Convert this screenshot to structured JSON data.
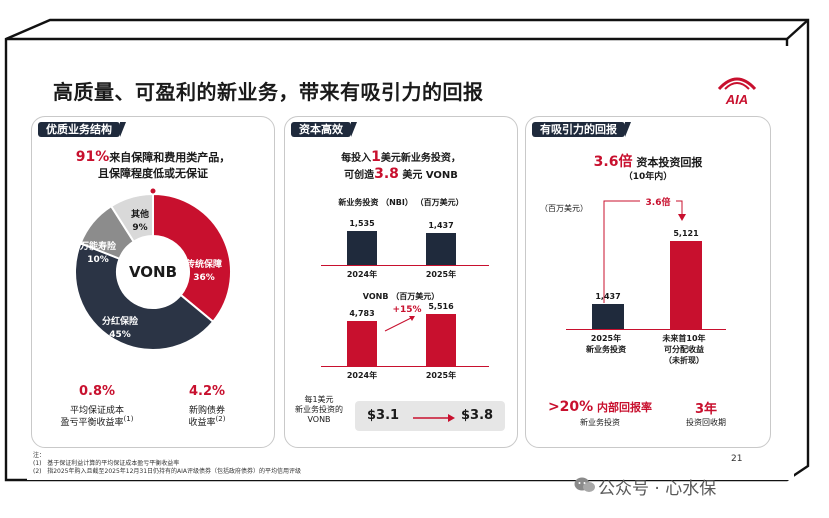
{
  "title": "高质量、可盈利的新业务，带来有吸引力的回报",
  "brand": {
    "name": "AIA",
    "color": "#c8102e",
    "navy": "#1f2a3c"
  },
  "panel1": {
    "header": "优质业务结构",
    "headline_pct": "91%",
    "headline_rest": "来自保障和费用类产品，",
    "headline_line2": "且保障程度低或无保证",
    "donut_center": "VONB",
    "slices": [
      {
        "label": "传统保障",
        "pct": "36%",
        "value": 36,
        "color": "#c8102e"
      },
      {
        "label": "分红保险",
        "pct": "45%",
        "value": 45,
        "color": "#2b3445"
      },
      {
        "label": "万能寿险",
        "pct": "10%",
        "value": 10,
        "color": "#8c8c8c"
      },
      {
        "label": "其他",
        "pct": "9%",
        "value": 9,
        "color": "#d9d9d9"
      }
    ],
    "stat1": {
      "value": "0.8%",
      "line1": "平均保证成本",
      "line2": "盈亏平衡收益率",
      "sup": "(1)"
    },
    "stat2": {
      "value": "4.2%",
      "line1": "新购债券",
      "line2": "收益率",
      "sup": "(2)"
    }
  },
  "panel2": {
    "header": "资本高效",
    "intro1_a": "每投入",
    "intro1_num": "1",
    "intro1_b": "美元新业务投资，",
    "intro2_a": "可创造",
    "intro2_num": "3.8",
    "intro2_b": " 美元 VONB",
    "chart1_title": "新业务投资 （NBI） （百万美元）",
    "chart2_title": "VONB （百万美元）",
    "growth": "+15%",
    "footer_label1": "每1美元",
    "footer_label2": "新业务投资的",
    "footer_label3": "VONB",
    "footer_from": "$3.1",
    "footer_to": "$3.8"
  },
  "panel3": {
    "header": "有吸引力的回报",
    "headline_num": "3.6倍",
    "headline_rest": "资本投资回报",
    "headline_sub": "（10年内）",
    "unit": "（百万美元）",
    "multiple": "3.6倍",
    "bar1_value": "1,437",
    "bar1_label1": "2025年",
    "bar1_label2": "新业务投资",
    "bar2_value": "5,121",
    "bar2_label1": "未来首10年",
    "bar2_label2": "可分配收益",
    "bar2_label3": "（未折现）",
    "stat1_value": ">20%",
    "stat1_rest": "内部回报率",
    "stat1_sub": "新业务投资",
    "stat2_value": "3年",
    "stat2_sub": "投资回收期"
  },
  "notes": {
    "label": "注：",
    "n1_num": "(1)",
    "n1": "基于保证利益计算的平均保证成本盈亏平衡收益率",
    "n2_num": "(2)",
    "n2": "指2025年购入且截至2025年12月31日仍持有的AIA评级债券（包括政府债券）的平均信用评级"
  },
  "page_number": "21",
  "watermark": "公众号 · 心水保",
  "chart_data": [
    {
      "type": "bar",
      "title": "新业务投资 （NBI） （百万美元）",
      "categories": [
        "2024年",
        "2025年"
      ],
      "values": [
        1535,
        1437
      ],
      "value_labels": [
        "1,535",
        "1,437"
      ]
    },
    {
      "type": "bar",
      "title": "VONB （百万美元）",
      "categories": [
        "2024年",
        "2025年"
      ],
      "values": [
        4783,
        5516
      ],
      "value_labels": [
        "4,783",
        "5,516"
      ],
      "annotation": "+15%"
    },
    {
      "type": "pie",
      "title": "VONB",
      "categories": [
        "传统保障",
        "分红保险",
        "万能寿险",
        "其他"
      ],
      "values": [
        36,
        45,
        10,
        9
      ]
    },
    {
      "type": "bar",
      "title": "3.6倍 资本投资回报",
      "categories": [
        "2025年 新业务投资",
        "未来首10年 可分配收益 （未折现）"
      ],
      "values": [
        1437,
        5121
      ],
      "value_labels": [
        "1,437",
        "5,121"
      ],
      "annotation": "3.6倍"
    }
  ]
}
